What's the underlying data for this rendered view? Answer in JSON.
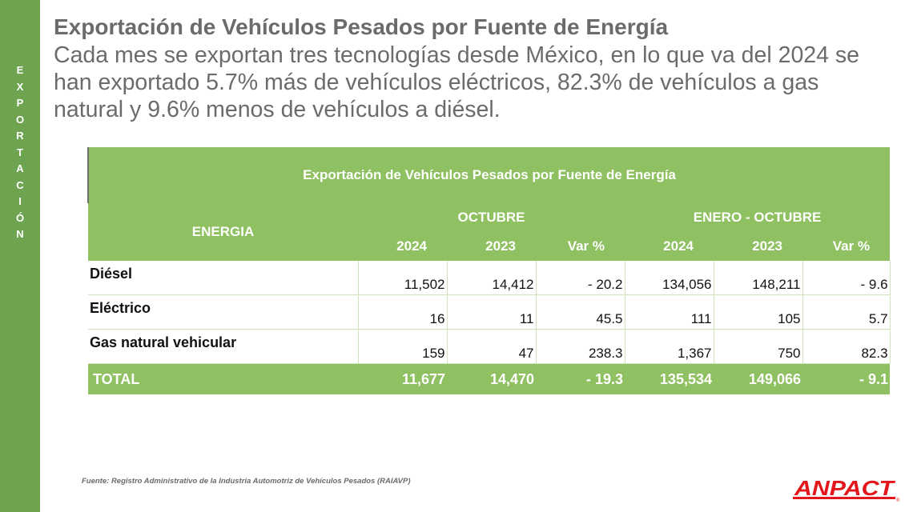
{
  "sidebar": {
    "letters": [
      "E",
      "X",
      "P",
      "O",
      "R",
      "T",
      "A",
      "C",
      "I",
      "Ó",
      "N"
    ]
  },
  "title": "Exportación de Vehículos Pesados por Fuente de Energía",
  "subtitle": "Cada mes se exportan tres tecnologías desde México, en lo que va del 2024 se han exportado 5.7% más de vehículos eléctricos, 82.3% de vehículos a gas natural y 9.6% menos de vehículos a diésel.",
  "table": {
    "title": "Exportación de Vehículos Pesados por Fuente de Energía",
    "energia_header": "ENERGIA",
    "group_octubre": "OCTUBRE",
    "group_enero_octubre": "ENERO - OCTUBRE",
    "columns": [
      "2024",
      "2023",
      "Var %",
      "2024",
      "2023",
      "Var %"
    ],
    "rows": [
      {
        "name": "Diésel",
        "values": [
          "11,502",
          "14,412",
          "- 20.2",
          "134,056",
          "148,211",
          "- 9.6"
        ]
      },
      {
        "name": "Eléctrico",
        "values": [
          "16",
          "11",
          "45.5",
          "111",
          "105",
          "5.7"
        ]
      },
      {
        "name": "Gas natural vehicular",
        "values": [
          "159",
          "47",
          "238.3",
          "1,367",
          "750",
          "82.3"
        ]
      }
    ],
    "total": {
      "name": "TOTAL",
      "values": [
        "11,677",
        "14,470",
        "- 19.3",
        "135,534",
        "149,066",
        "- 9.1"
      ]
    }
  },
  "source": "Fuente: Registro Administrativo de la Industria Automotriz de Vehículos Pesados (RAIAVP)",
  "logo": {
    "text": "ANPACT",
    "color": "#e3161b"
  },
  "colors": {
    "sidebar": "#6ea34f",
    "table_header": "#8fc062",
    "text_gray": "#6b6b6b"
  }
}
